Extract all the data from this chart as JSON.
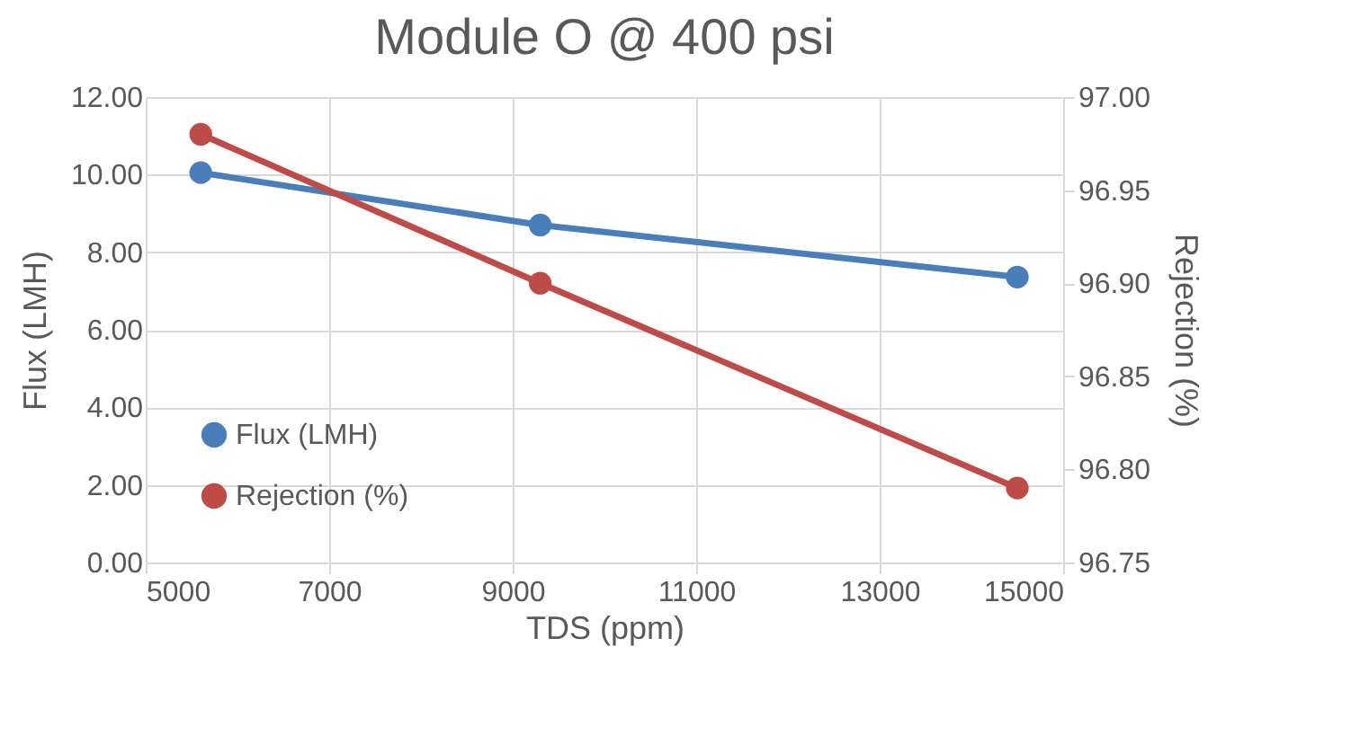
{
  "chart_data": {
    "type": "line",
    "title": "Module O @ 400 psi",
    "xlabel": "TDS (ppm)",
    "ylabel": "Flux (LMH)",
    "y2label": "Rejection (%)",
    "x": [
      5600,
      9300,
      14500
    ],
    "series": [
      {
        "name": "Flux (LMH)",
        "color": "#4a7ebb",
        "values": [
          10.05,
          8.7,
          7.36
        ]
      },
      {
        "name": "Rejection (%)",
        "color": "#be4b48",
        "axis": "y2",
        "values": [
          96.98,
          96.9,
          96.79
        ]
      }
    ],
    "xlim": [
      5000,
      15000
    ],
    "xticks": [
      5000,
      7000,
      9000,
      11000,
      13000,
      15000
    ],
    "ylim": [
      0,
      12
    ],
    "yticks": [
      {
        "value": 0,
        "label": "0.00"
      },
      {
        "value": 2,
        "label": "2.00"
      },
      {
        "value": 4,
        "label": "4.00"
      },
      {
        "value": 6,
        "label": "6.00"
      },
      {
        "value": 8,
        "label": "8.00"
      },
      {
        "value": 10,
        "label": "10.00"
      },
      {
        "value": 12,
        "label": "12.00"
      }
    ],
    "y2lim": [
      96.75,
      97
    ],
    "y2ticks": [
      {
        "value": 96.75,
        "label": "96.75"
      },
      {
        "value": 96.8,
        "label": "96.80"
      },
      {
        "value": 96.85,
        "label": "96.85"
      },
      {
        "value": 96.9,
        "label": "96.90"
      },
      {
        "value": 96.95,
        "label": "96.95"
      },
      {
        "value": 97,
        "label": "97.00"
      }
    ],
    "grid": true,
    "legend": "bottom left",
    "marker": "circle",
    "line_style": "solid"
  }
}
